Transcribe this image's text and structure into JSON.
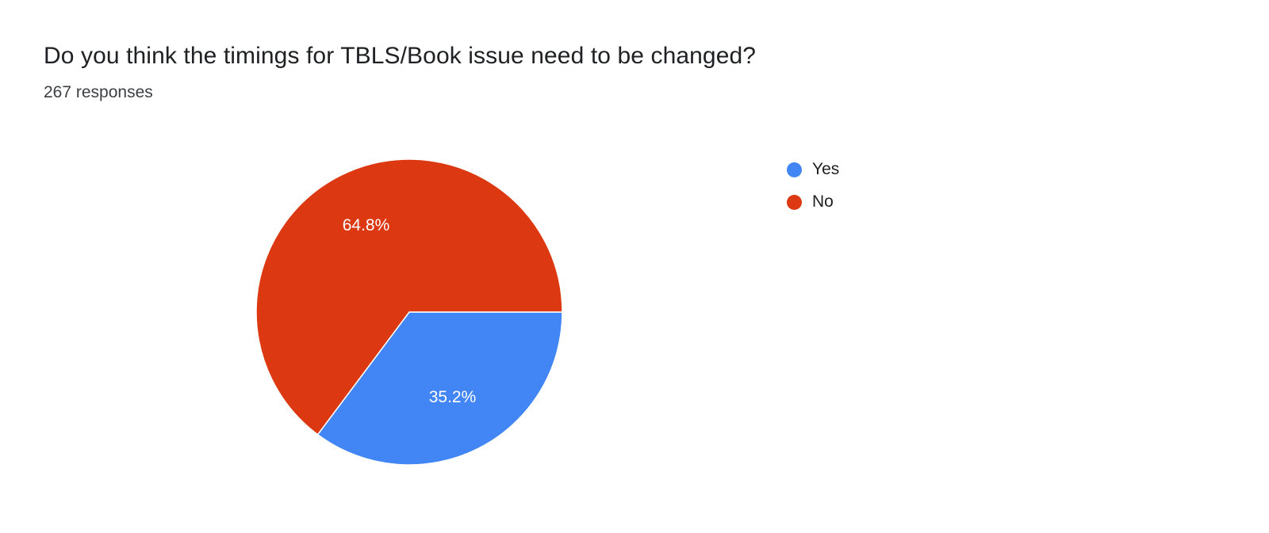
{
  "header": {
    "title": "Do you think the timings for TBLS/Book issue need to be changed?",
    "responses": "267 responses"
  },
  "chart_data": {
    "type": "pie",
    "title": "Do you think the timings for TBLS/Book issue need to be changed?",
    "subtitle": "267 responses",
    "categories": [
      "Yes",
      "No"
    ],
    "values_percent": [
      35.2,
      64.8
    ],
    "slice_labels": [
      "35.2%",
      "64.8%"
    ],
    "colors": [
      "#4285f4",
      "#dc3912"
    ],
    "start_angle_deg": 90,
    "direction": "clockwise",
    "legend_position": "right",
    "label_color": "#ffffff",
    "background": "#ffffff"
  }
}
